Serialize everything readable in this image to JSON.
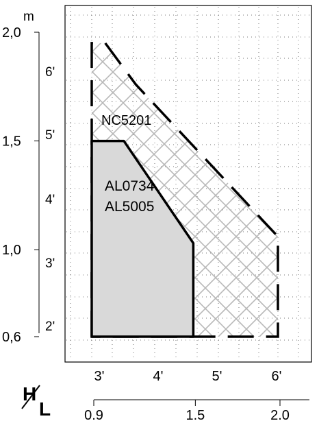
{
  "chart_data": {
    "type": "area",
    "title": "",
    "unit_label": "m",
    "hl_label": {
      "h": "H",
      "l": "L"
    },
    "axes": {
      "metric_height": {
        "ticks": [
          2.0,
          1.5,
          1.0,
          0.6
        ],
        "labels": [
          "2,0",
          "1,5",
          "1,0",
          "0,6"
        ],
        "range": [
          0.6,
          2.0
        ]
      },
      "feet_height": {
        "labels": [
          "6'",
          "5'",
          "4'",
          "3'",
          "2'"
        ]
      },
      "feet_length": {
        "labels": [
          "3'",
          "4'",
          "5'",
          "6'"
        ]
      },
      "metric_length": {
        "ticks": [
          0.9,
          1.5,
          2.0
        ],
        "labels": [
          "0.9",
          "1.5",
          "2.0"
        ],
        "range": [
          0.9,
          2.0
        ]
      }
    },
    "grid": true,
    "series": [
      {
        "name": "NC5201",
        "style": "hatched, dashed outline",
        "points": [
          [
            0.9,
            0.6
          ],
          [
            0.9,
            1.95
          ],
          [
            0.98,
            1.95
          ],
          [
            1.16,
            1.76
          ],
          [
            2.0,
            1.06
          ],
          [
            2.0,
            0.6
          ]
        ]
      },
      {
        "name": "AL0734 AL5005",
        "style": "solid gray fill, solid outline",
        "points": [
          [
            0.9,
            0.6
          ],
          [
            0.9,
            1.5
          ],
          [
            1.09,
            1.5
          ],
          [
            1.5,
            1.03
          ],
          [
            1.5,
            0.6
          ]
        ]
      }
    ],
    "region_labels": [
      "NC5201",
      "AL0734",
      "AL5005"
    ]
  }
}
